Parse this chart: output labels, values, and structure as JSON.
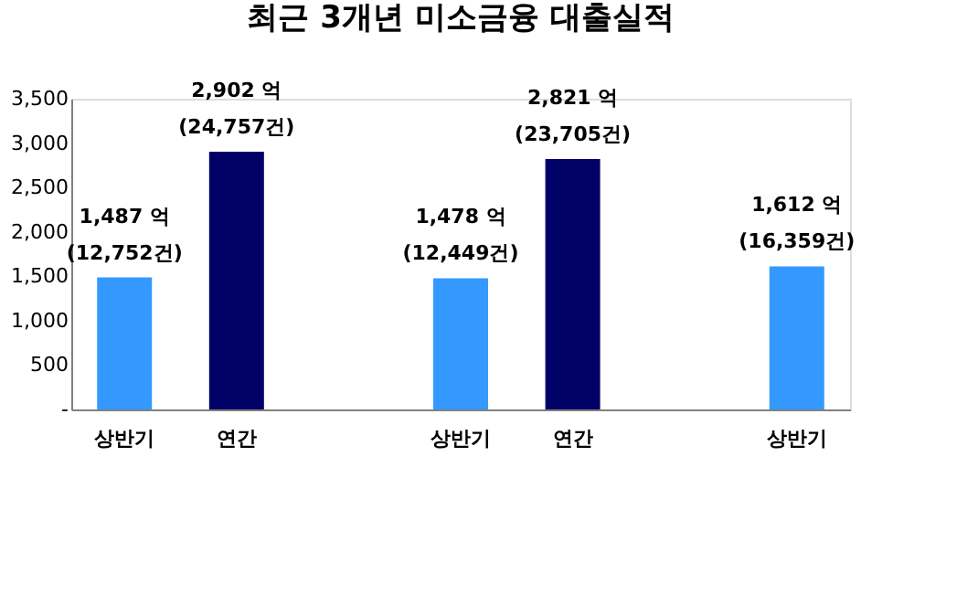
{
  "chart_data": {
    "type": "bar",
    "title": "최근 3개년 미소금융 대출실적",
    "categories": [
      "상반기",
      "연간",
      null,
      "상반기",
      "연간",
      null,
      "상반기"
    ],
    "values": [
      1487,
      2902,
      null,
      1478,
      2821,
      null,
      1612
    ],
    "colors": [
      "#3399ff",
      "#000066",
      null,
      "#3399ff",
      "#000066",
      null,
      "#3399ff"
    ],
    "value_labels": [
      "1,487 억\n(12,752건)",
      "2,902 억\n(24,757건)",
      null,
      "1,478 억\n(12,449건)",
      "2,821 억\n(23,705건)",
      null,
      "1,612 억\n(16,359건)"
    ],
    "ylim": [
      0,
      3500
    ],
    "yticks": [
      {
        "value": 0,
        "label": "-"
      },
      500,
      {
        "value": 1000,
        "label": "1,000"
      },
      {
        "value": 1500,
        "label": "1,500"
      },
      {
        "value": 2000,
        "label": "2,000"
      },
      {
        "value": 2500,
        "label": "2,500"
      },
      {
        "value": 3000,
        "label": "3,000"
      },
      {
        "value": 3500,
        "label": "3,500"
      }
    ],
    "grid": false
  }
}
